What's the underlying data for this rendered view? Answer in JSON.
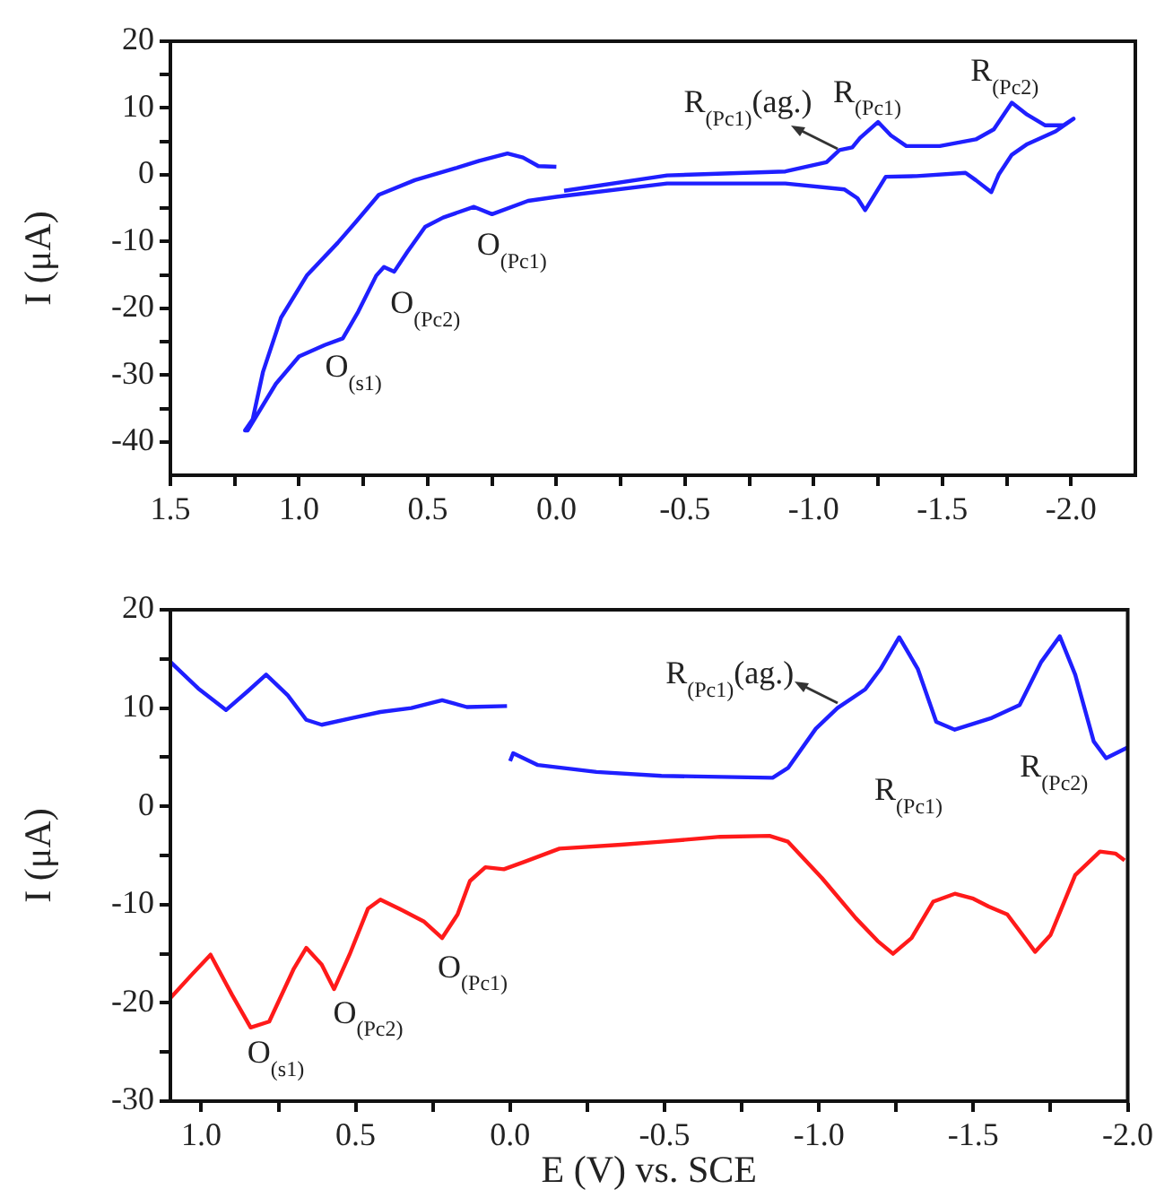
{
  "chart_data": [
    {
      "type": "line",
      "ylabel": "I (μA)",
      "xlim": [
        1.5,
        -2.25
      ],
      "ylim": [
        -45,
        20
      ],
      "xticks": [
        1.5,
        {
          "value": 1.25,
          "label": null
        },
        {
          "value": 1,
          "label": "1.0"
        },
        {
          "value": 0.75,
          "label": null
        },
        0.5,
        {
          "value": 0.25,
          "label": null
        },
        {
          "value": 0,
          "label": "0.0"
        },
        {
          "value": -0.25,
          "label": null
        },
        -0.5,
        {
          "value": -0.75,
          "label": null
        },
        {
          "value": -1,
          "label": "-1.0"
        },
        {
          "value": -1.25,
          "label": null
        },
        -1.5,
        {
          "value": -1.75,
          "label": null
        },
        {
          "value": -2,
          "label": "-2.0"
        }
      ],
      "yticks": [
        20,
        {
          "value": 15,
          "label": null
        },
        10,
        {
          "value": 5,
          "label": null
        },
        0,
        {
          "value": -5,
          "label": null
        },
        -10,
        {
          "value": -15,
          "label": null
        },
        -20,
        {
          "value": -25,
          "label": null
        },
        -30,
        {
          "value": -35,
          "label": null
        },
        -40
      ],
      "grid": false,
      "legend": false,
      "marker": "none",
      "line_style": "solid",
      "series": [
        {
          "color": "#1f1fff",
          "x": [
            -0.03,
            -0.43,
            -0.89,
            -1.05,
            -1.1,
            -1.15,
            -1.18,
            -1.25,
            -1.3,
            -1.36,
            -1.49,
            -1.63,
            -1.7,
            -1.77,
            -1.83,
            -1.9,
            -1.97,
            -2.01,
            -1.94,
            -1.83,
            -1.77,
            -1.72,
            -1.69,
            -1.63,
            -1.59,
            -1.4,
            -1.28,
            -1.2,
            -1.17,
            -1.12,
            -0.89,
            -0.43,
            0,
            0.11,
            0.25,
            0.32,
            0.44,
            0.51,
            0.58,
            0.63,
            0.67,
            0.7,
            0.77,
            0.83,
            0.9,
            1.0,
            1.09,
            1.2,
            1.21,
            1.18,
            1.14,
            1.07,
            0.97,
            0.85,
            0.78,
            0.69,
            0.55,
            0.39,
            0.3,
            0.19,
            0.13,
            0.07,
            0
          ],
          "values": [
            -2.4,
            -0.1,
            0.5,
            1.9,
            3.7,
            4.1,
            5.5,
            7.9,
            5.9,
            4.3,
            4.3,
            5.3,
            6.8,
            10.8,
            9.0,
            7.4,
            7.4,
            8.4,
            6.5,
            4.6,
            3.0,
            0.1,
            -2.6,
            -0.8,
            0.3,
            -0.2,
            -0.3,
            -5.3,
            -3.5,
            -2.2,
            -1.3,
            -1.3,
            -3.3,
            -3.9,
            -5.9,
            -4.8,
            -6.4,
            -7.8,
            -11.6,
            -14.5,
            -13.8,
            -15.1,
            -20.5,
            -24.5,
            -25.5,
            -27.2,
            -31.3,
            -38.3,
            -38.3,
            -36.6,
            -29.5,
            -21.4,
            -15.1,
            -10.2,
            -7.1,
            -3.0,
            -0.8,
            1.0,
            2.1,
            3.2,
            2.6,
            1.3,
            1.2
          ]
        }
      ],
      "annotations": [
        {
          "text": "O$_{(s1)}$",
          "x": 0.9,
          "y": -25.5
        },
        {
          "text": "O$_{(Pc2)}$",
          "x": 0.67,
          "y": -13.8
        },
        {
          "text": "O$_{(Pc1)}$",
          "x": 0.25,
          "y": -5.9
        },
        {
          "text": "R$_{(Pc1)}$(ag.)",
          "x": -1.1,
          "y": 3.7
        },
        {
          "text": "R$_{(Pc1)}$",
          "x": -1.25,
          "y": 7.9
        },
        {
          "text": "R$_{(Pc2)}$",
          "x": -1.77,
          "y": 10.8
        }
      ]
    },
    {
      "type": "line",
      "ylabel": "I (μA)",
      "xlabel": "E (V) vs. SCE",
      "xlim": [
        1.1,
        -2.0
      ],
      "ylim": [
        -30,
        20
      ],
      "xticks": [
        {
          "value": 1,
          "label": "1.0"
        },
        {
          "value": 0.75,
          "label": null
        },
        0.5,
        {
          "value": 0.25,
          "label": null
        },
        {
          "value": 0,
          "label": "0.0"
        },
        {
          "value": -0.25,
          "label": null
        },
        -0.5,
        {
          "value": -0.75,
          "label": null
        },
        {
          "value": -1,
          "label": "-1.0"
        },
        {
          "value": -1.25,
          "label": null
        },
        -1.5,
        {
          "value": -1.75,
          "label": null
        },
        {
          "value": -2,
          "label": "-2.0"
        }
      ],
      "yticks": [
        20,
        {
          "value": 15,
          "label": null
        },
        10,
        {
          "value": 5,
          "label": null
        },
        0,
        {
          "value": -5,
          "label": null
        },
        -10,
        {
          "value": -15,
          "label": null
        },
        -20,
        {
          "value": -25,
          "label": null
        },
        -30
      ],
      "grid": false,
      "legend": false,
      "marker": "none",
      "line_style": "solid",
      "series": [
        {
          "color": "#1f1fff",
          "x": [
            1.1,
            1.01,
            0.92,
            0.85,
            0.79,
            0.72,
            0.66,
            0.61,
            0.51,
            0.42,
            0.32,
            0.22,
            0.14,
            0.01
          ],
          "values": [
            14.7,
            12.0,
            9.8,
            11.7,
            13.4,
            11.3,
            8.8,
            8.3,
            9.0,
            9.6,
            10.0,
            10.8,
            10.1,
            10.2
          ]
        },
        {
          "color": "#1f1fff",
          "x": [
            0,
            -0.01,
            -0.09,
            -0.28,
            -0.49,
            -0.85,
            -0.9,
            -0.99,
            -1.06,
            -1.15,
            -1.2,
            -1.26,
            -1.32,
            -1.38,
            -1.44,
            -1.56,
            -1.65,
            -1.72,
            -1.78,
            -1.83,
            -1.89,
            -1.93,
            -2.0
          ],
          "values": [
            4.6,
            5.4,
            4.2,
            3.5,
            3.1,
            2.9,
            3.9,
            7.9,
            10.0,
            11.9,
            14.0,
            17.2,
            14.0,
            8.6,
            7.8,
            9.0,
            10.3,
            14.7,
            17.3,
            13.4,
            6.6,
            4.9,
            6.0
          ]
        },
        {
          "color": "#ff1a1a",
          "x": [
            1.1,
            1.03,
            0.97,
            0.9,
            0.84,
            0.78,
            0.7,
            0.66,
            0.61,
            0.57,
            0.52,
            0.46,
            0.42,
            0.36,
            0.28,
            0.22,
            0.17,
            0.13,
            0.08,
            0.02,
            -0.05,
            -0.16,
            -0.36,
            -0.49,
            -0.68,
            -0.84,
            -0.9,
            -1.01,
            -1.12,
            -1.19,
            -1.24,
            -1.3,
            -1.37,
            -1.44,
            -1.5,
            -1.55,
            -1.61,
            -1.66,
            -1.7,
            -1.75,
            -1.83,
            -1.91,
            -1.96,
            -1.99
          ],
          "values": [
            -19.5,
            -17.1,
            -15.1,
            -19.2,
            -22.5,
            -21.9,
            -16.5,
            -14.4,
            -16.1,
            -18.6,
            -15.1,
            -10.4,
            -9.5,
            -10.4,
            -11.7,
            -13.4,
            -11.0,
            -7.6,
            -6.2,
            -6.4,
            -5.6,
            -4.3,
            -3.9,
            -3.6,
            -3.1,
            -3.0,
            -3.6,
            -7.3,
            -11.4,
            -13.7,
            -15.0,
            -13.4,
            -9.7,
            -8.9,
            -9.4,
            -10.2,
            -11.0,
            -13.1,
            -14.8,
            -13.1,
            -7.0,
            -4.6,
            -4.8,
            -5.5
          ]
        }
      ],
      "annotations": [
        {
          "text": "O$_{(s1)}$",
          "x": 0.84,
          "y": -22.5
        },
        {
          "text": "O$_{(Pc2)}$",
          "x": 0.57,
          "y": -18.6
        },
        {
          "text": "O$_{(Pc1)}$",
          "x": 0.22,
          "y": -13.4
        },
        {
          "text": "R$_{(Pc1)}$(ag.)",
          "x": -0.99,
          "y": 7.9
        },
        "R$_{(Pc1)}$",
        "R$_{(Pc2)}$"
      ]
    }
  ]
}
